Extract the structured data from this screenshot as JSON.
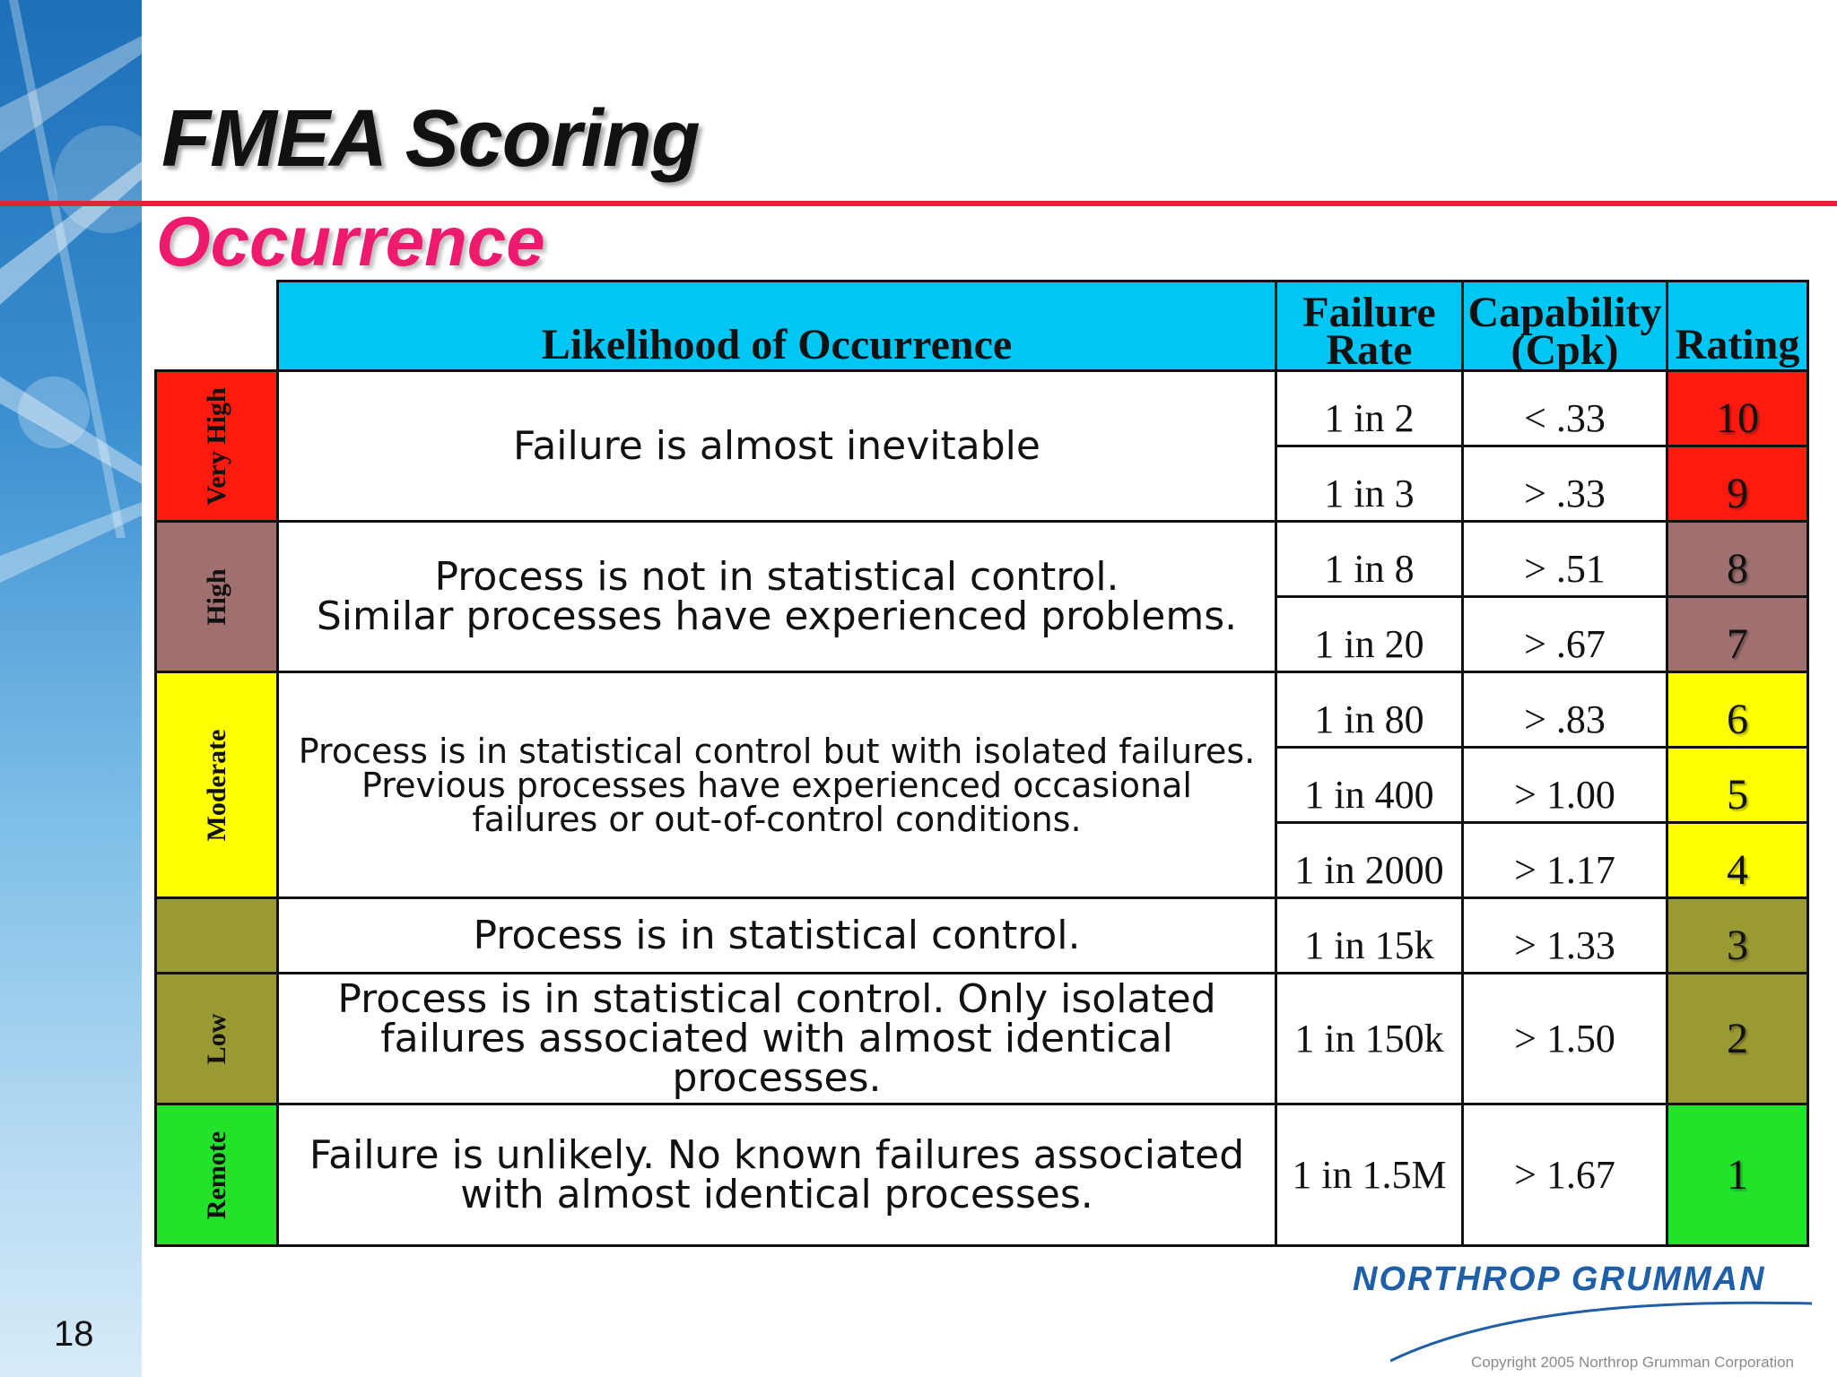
{
  "slide": {
    "title": "FMEA Scoring",
    "subtitle": "Occurrence",
    "page_number": "18"
  },
  "table": {
    "headers": {
      "likelihood": "Likelihood of Occurrence",
      "failure_rate_line1": "Failure",
      "failure_rate_line2": "Rate",
      "capability_line1": "Capability",
      "capability_line2": "(Cpk)",
      "rating": "Rating"
    },
    "groups": [
      {
        "category": "Very High",
        "color": "#ff1a10",
        "description_lines": [
          "Failure is almost inevitable"
        ],
        "rows": [
          {
            "failure_rate": "1 in 2",
            "cpk": "< .33",
            "rating": "10"
          },
          {
            "failure_rate": "1 in 3",
            "cpk": "> .33",
            "rating": "9"
          }
        ]
      },
      {
        "category": "High",
        "color": "#a07070",
        "description_lines": [
          "Process is not in statistical control.",
          "Similar processes have experienced problems."
        ],
        "rows": [
          {
            "failure_rate": "1 in 8",
            "cpk": "> .51",
            "rating": "8"
          },
          {
            "failure_rate": "1 in 20",
            "cpk": "> .67",
            "rating": "7"
          }
        ]
      },
      {
        "category": "Moderate",
        "color": "#ffff00",
        "description_lines": [
          "Process is in statistical control but with isolated failures.",
          "Previous processes have experienced occasional",
          "failures or out-of-control conditions."
        ],
        "rows": [
          {
            "failure_rate": "1 in 80",
            "cpk": "> .83",
            "rating": "6"
          },
          {
            "failure_rate": "1 in 400",
            "cpk": "> 1.00",
            "rating": "5"
          },
          {
            "failure_rate": "1 in 2000",
            "cpk": "> 1.17",
            "rating": "4"
          }
        ]
      },
      {
        "category": "",
        "color": "#9a9a32",
        "description_lines": [
          "Process is in statistical control."
        ],
        "rows": [
          {
            "failure_rate": "1 in 15k",
            "cpk": "> 1.33",
            "rating": "3"
          }
        ]
      },
      {
        "category": "Low",
        "color": "#9a9a32",
        "description_lines": [
          "Process is in statistical control.  Only isolated",
          "failures associated with almost identical processes."
        ],
        "rows": [
          {
            "failure_rate": "1 in 150k",
            "cpk": "> 1.50",
            "rating": "2"
          }
        ]
      },
      {
        "category": "Remote",
        "color": "#22e22a",
        "description_lines": [
          "Failure is unlikely. No known failures associated",
          "with almost identical processes."
        ],
        "rows": [
          {
            "failure_rate": "1 in 1.5M",
            "cpk": "> 1.67",
            "rating": "1"
          }
        ]
      }
    ]
  },
  "footer": {
    "logo_text": "NORTHROP GRUMMAN",
    "copyright": "Copyright 2005 Northrop Grumman Corporation"
  },
  "colors": {
    "header_bg": "#00c6f4",
    "title_rule": "#e2233a",
    "subtitle": "#ee1a6e",
    "logo": "#1f5fa8"
  }
}
